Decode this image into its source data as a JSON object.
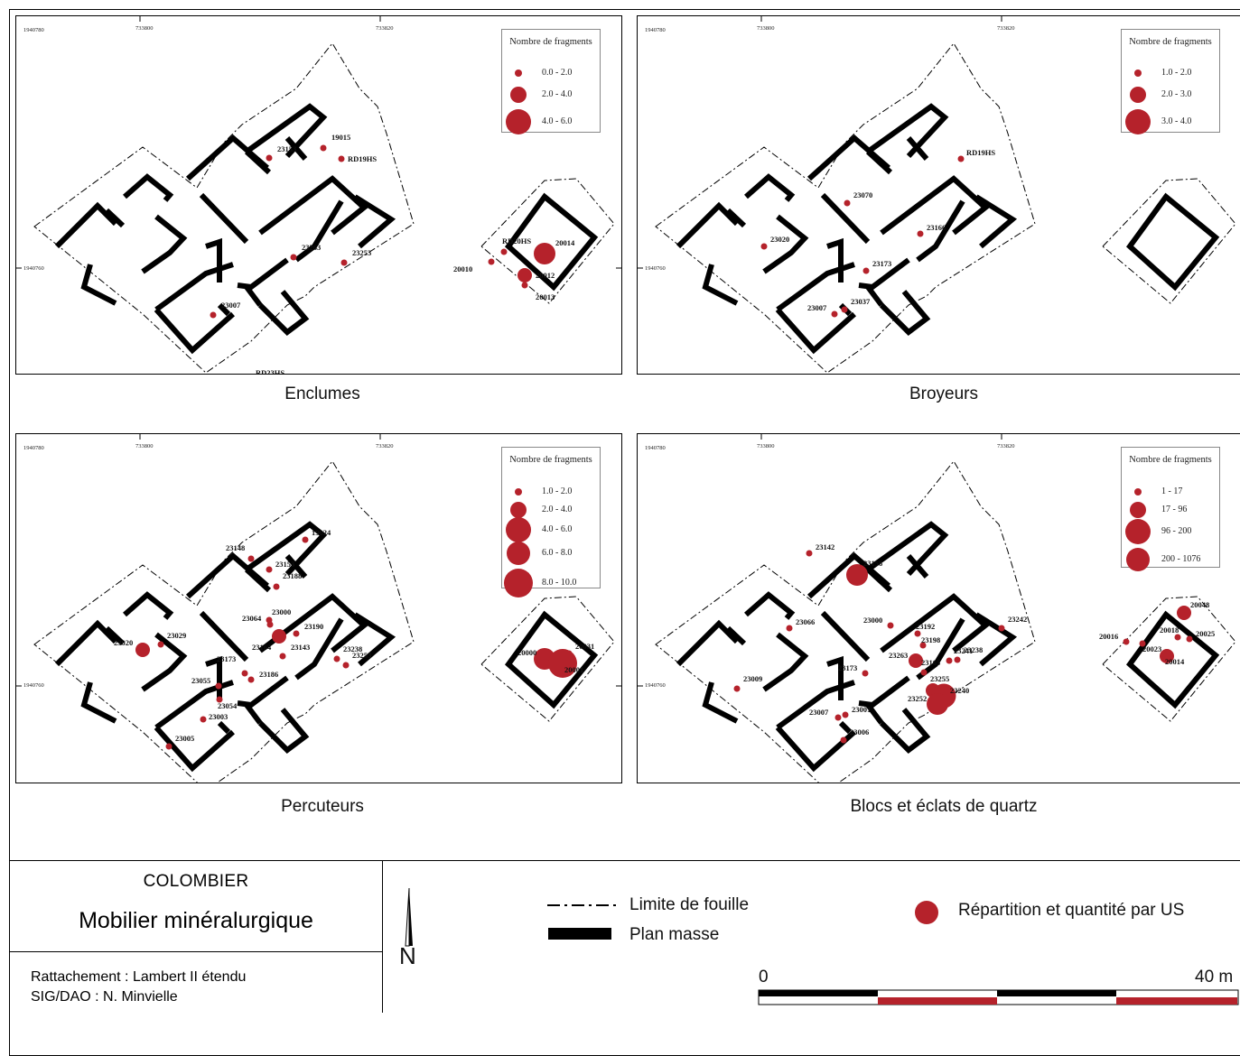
{
  "panels": [
    {
      "id": "enclumes",
      "caption": "Enclumes",
      "legend_title": "Nombre de fragments",
      "legend": [
        {
          "label": "0.0 - 2.0",
          "size": 1
        },
        {
          "label": "2.0 - 4.0",
          "size": 2
        },
        {
          "label": "4.0 - 6.0",
          "size": 3
        }
      ],
      "ticks": {
        "x1": "733800",
        "x2": "733820",
        "y1": "1940780",
        "y2": "1940760"
      },
      "points": [
        {
          "label": "19015",
          "size": 1
        },
        {
          "label": "23153",
          "size": 1
        },
        {
          "label": "RD19HS",
          "size": 1
        },
        {
          "label": "23263",
          "size": 1
        },
        {
          "label": "23253",
          "size": 1
        },
        {
          "label": "23007",
          "size": 1
        },
        {
          "label": "RD23HS",
          "size": 1
        },
        {
          "label": "RD20HS",
          "size": 1
        },
        {
          "label": "20014",
          "size": 3
        },
        {
          "label": "20010",
          "size": 1
        },
        {
          "label": "20012",
          "size": 2
        },
        {
          "label": "20013",
          "size": 1
        }
      ]
    },
    {
      "id": "broyeurs",
      "caption": "Broyeurs",
      "legend_title": "Nombre de fragments",
      "legend": [
        {
          "label": "1.0 - 2.0",
          "size": 1
        },
        {
          "label": "2.0 - 3.0",
          "size": 2
        },
        {
          "label": "3.0 - 4.0",
          "size": 3
        }
      ],
      "ticks": {
        "x1": "733800",
        "x2": "733820",
        "y1": "1940780",
        "y2": "1940760"
      },
      "points": [
        {
          "label": "RD19HS",
          "size": 1
        },
        {
          "label": "23070",
          "size": 1
        },
        {
          "label": "23166",
          "size": 1
        },
        {
          "label": "23020",
          "size": 1
        },
        {
          "label": "23173",
          "size": 1
        },
        {
          "label": "23007",
          "size": 1
        },
        {
          "label": "23037",
          "size": 1
        }
      ]
    },
    {
      "id": "percuteurs",
      "caption": "Percuteurs",
      "legend_title": "Nombre de fragments",
      "legend": [
        {
          "label": "1.0 - 2.0",
          "size": 1
        },
        {
          "label": "2.0 - 4.0",
          "size": 2
        },
        {
          "label": "4.0 - 6.0",
          "size": 3
        },
        {
          "label": "6.0 - 8.0",
          "size": 4
        },
        {
          "label": "8.0 - 10.0",
          "size": 5
        }
      ],
      "ticks": {
        "x1": "733800",
        "x2": "733820",
        "y1": "1940780",
        "y2": "1940760"
      },
      "points": [
        {
          "label": "19024",
          "size": 1
        },
        {
          "label": "23148",
          "size": 1
        },
        {
          "label": "23153",
          "size": 1
        },
        {
          "label": "23188",
          "size": 1
        },
        {
          "label": "23064",
          "size": 1
        },
        {
          "label": "23000",
          "size": 1
        },
        {
          "label": "23190",
          "size": 1
        },
        {
          "label": "23164",
          "size": 2
        },
        {
          "label": "23143",
          "size": 1
        },
        {
          "label": "23020",
          "size": 2
        },
        {
          "label": "23029",
          "size": 1
        },
        {
          "label": "23173",
          "size": 1
        },
        {
          "label": "23186",
          "size": 1
        },
        {
          "label": "23055",
          "size": 1
        },
        {
          "label": "23054",
          "size": 1
        },
        {
          "label": "23003",
          "size": 1
        },
        {
          "label": "23005",
          "size": 1
        },
        {
          "label": "23238",
          "size": 1
        },
        {
          "label": "23253",
          "size": 1
        },
        {
          "label": "20000",
          "size": 3
        },
        {
          "label": "20031",
          "size": 1
        },
        {
          "label": "20001",
          "size": 5
        }
      ]
    },
    {
      "id": "blocs",
      "caption": "Blocs et éclats de quartz",
      "legend_title": "Nombre de fragments",
      "legend": [
        {
          "label": "1 - 17",
          "size": 1
        },
        {
          "label": "17 - 96",
          "size": 2
        },
        {
          "label": "96 - 200",
          "size": 3
        },
        {
          "label": "200 - 1076",
          "size": 4
        }
      ],
      "ticks": {
        "x1": "733800",
        "x2": "733820",
        "y1": "1940780",
        "y2": "1940760"
      },
      "points": [
        {
          "label": "23142",
          "size": 1
        },
        {
          "label": "23158",
          "size": 3
        },
        {
          "label": "23066",
          "size": 1
        },
        {
          "label": "23000",
          "size": 1
        },
        {
          "label": "23192",
          "size": 1
        },
        {
          "label": "23198",
          "size": 1
        },
        {
          "label": "23263",
          "size": 2
        },
        {
          "label": "23241",
          "size": 1
        },
        {
          "label": "23238",
          "size": 1
        },
        {
          "label": "23173",
          "size": 1
        },
        {
          "label": "23165",
          "size": 1
        },
        {
          "label": "23255",
          "size": 2
        },
        {
          "label": "23240",
          "size": 4
        },
        {
          "label": "23252",
          "size": 3
        },
        {
          "label": "23009",
          "size": 1
        },
        {
          "label": "23007",
          "size": 1
        },
        {
          "label": "23001",
          "size": 1
        },
        {
          "label": "23006",
          "size": 1
        },
        {
          "label": "23242",
          "size": 1
        },
        {
          "label": "20048",
          "size": 2
        },
        {
          "label": "20016",
          "size": 1
        },
        {
          "label": "20018",
          "size": 1
        },
        {
          "label": "20025",
          "size": 1
        },
        {
          "label": "20023",
          "size": 1
        },
        {
          "label": "20014",
          "size": 2
        }
      ]
    }
  ],
  "title_block": {
    "site": "COLOMBIER",
    "title": "Mobilier minéralurgique",
    "projection": "Rattachement : Lambert II étendu",
    "author": "SIG/DAO : N. Minvielle"
  },
  "legend_main": {
    "limit_label": "Limite de fouille",
    "plan_label": "Plan masse",
    "dist_label": "Répartition et quantité par US",
    "dot_color": "#b5222b"
  },
  "north": {
    "label": "N"
  },
  "scale": {
    "start": "0",
    "end": "40 m"
  }
}
